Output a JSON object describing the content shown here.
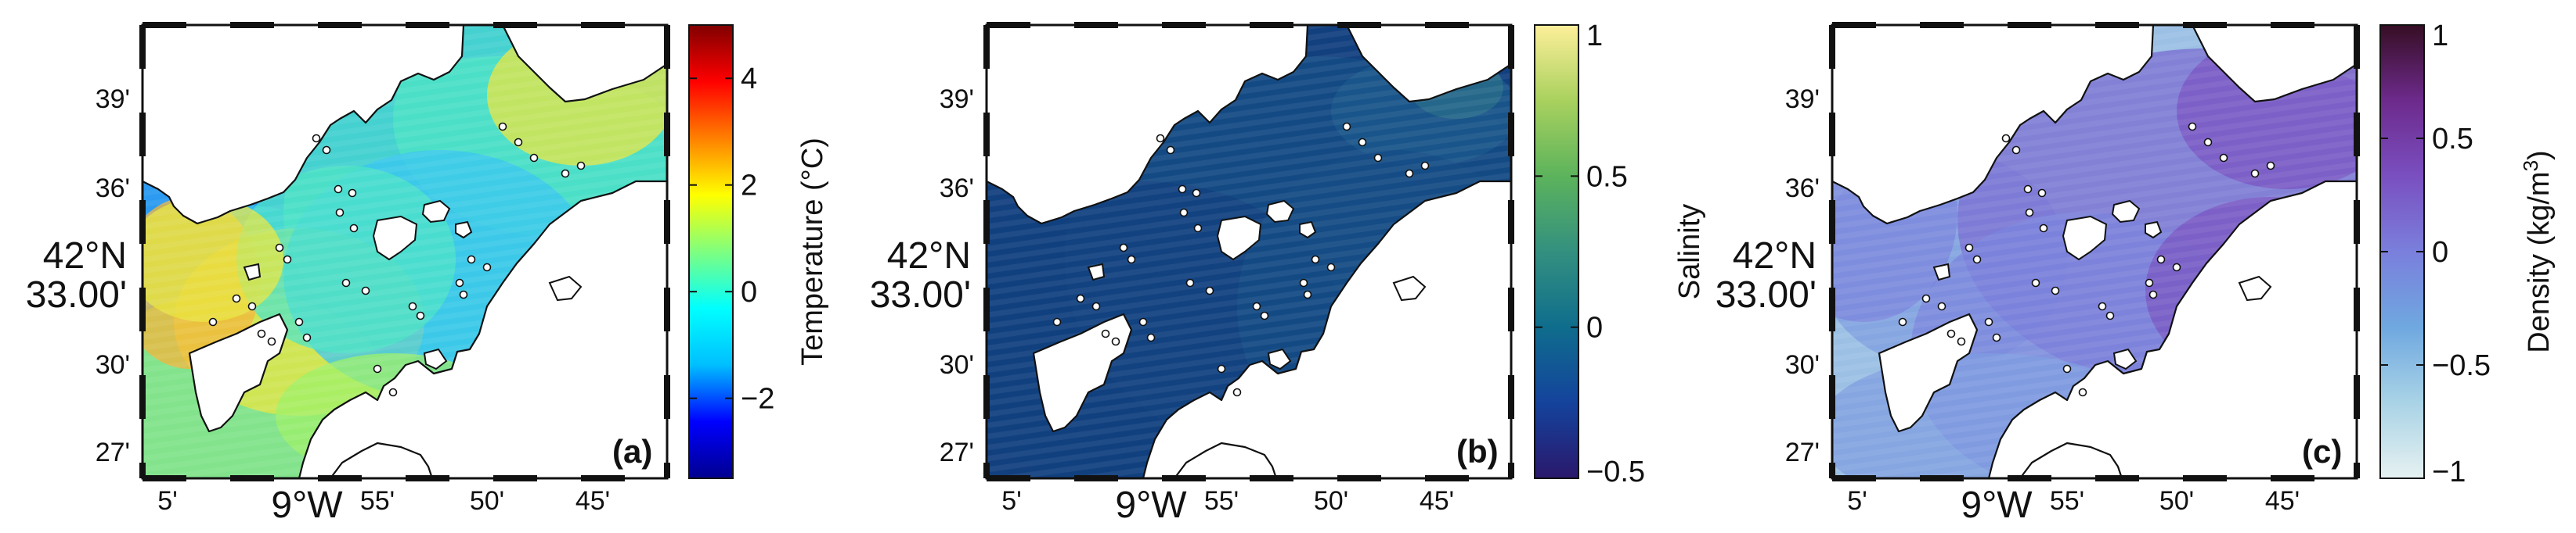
{
  "figure": {
    "lat_ticks": [
      "39'",
      "36'",
      "33.00'",
      "30'",
      "27'"
    ],
    "lat_degree_label": "42°N",
    "lon_ticks": [
      "5'",
      "9°W",
      "55'",
      "50'",
      "45'"
    ],
    "panels": [
      {
        "id": "a",
        "tag": "(a)",
        "colorbar": {
          "title": "Temperature (°C)",
          "ticks": [
            "4",
            "2",
            "0",
            "−2"
          ],
          "tick_values": [
            4,
            2,
            0,
            -2
          ],
          "range": [
            -3.5,
            5
          ],
          "colormap": "jet",
          "colors": [
            "#00008f",
            "#0000ff",
            "#00bfff",
            "#00ffff",
            "#7fff7f",
            "#ffff00",
            "#ff8000",
            "#ff0000",
            "#800000"
          ]
        },
        "sea_colors": [
          "#2b9af0",
          "#39c6f2",
          "#4ee3c6",
          "#9ef06a",
          "#e8e640",
          "#f4b43a"
        ]
      },
      {
        "id": "b",
        "tag": "(b)",
        "colorbar": {
          "title": "Salinity",
          "ticks": [
            "1",
            "0.5",
            "0",
            "−0.5"
          ],
          "tick_values": [
            1,
            0.5,
            0,
            -0.5
          ],
          "range": [
            -0.5,
            1
          ],
          "colormap": "haline",
          "colors": [
            "#2a186c",
            "#14439c",
            "#0f6d8d",
            "#33907f",
            "#5cb35c",
            "#a9d15e",
            "#fdef9a"
          ]
        },
        "sea_colors": [
          "#12407f",
          "#154d86",
          "#1b5a8c",
          "#2a6e8a"
        ]
      },
      {
        "id": "c",
        "tag": "(c)",
        "colorbar": {
          "title": "Density (kg/m",
          "title_sup": "3",
          "title_end": ")",
          "ticks": [
            "1",
            "0.5",
            "0",
            "−0.5",
            "−1"
          ],
          "tick_values": [
            1,
            0.5,
            0,
            -0.5,
            -1
          ],
          "range": [
            -1,
            1
          ],
          "colormap": "dense",
          "colors": [
            "#e6f1f1",
            "#a9d3e6",
            "#6fa8e0",
            "#7a7fdc",
            "#7a4fc0",
            "#6d2a8c",
            "#360e24"
          ]
        },
        "sea_colors": [
          "#9cc0e4",
          "#7f9de0",
          "#7b84dc",
          "#7a6cd2",
          "#7a56c2"
        ]
      }
    ]
  }
}
